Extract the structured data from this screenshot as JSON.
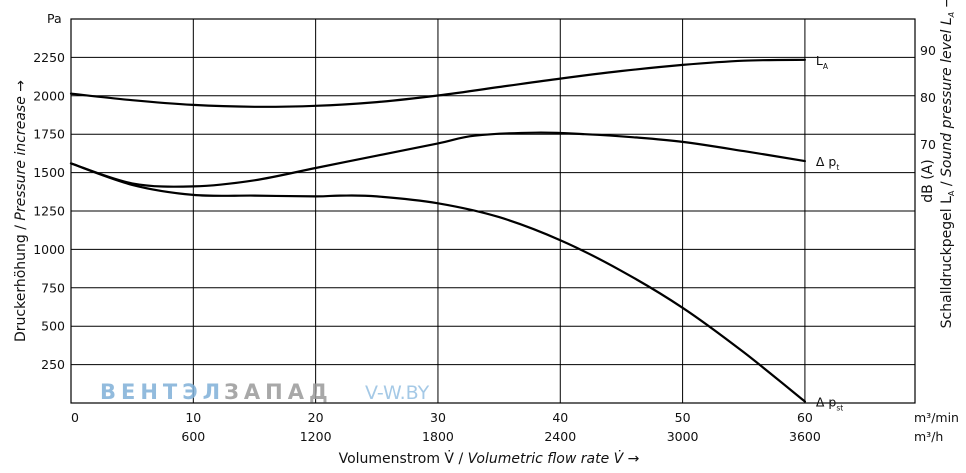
{
  "chart_data": {
    "type": "line",
    "title": "",
    "x": {
      "unit_primary": "m³/min",
      "unit_secondary": "m³/h",
      "label_de": "Volumenstrom V̇ / ",
      "label_en": "Volumetric flow rate V̇ →",
      "range": [
        0,
        69
      ],
      "ticks": [
        0,
        10,
        20,
        30,
        40,
        50,
        60
      ],
      "ticks_secondary": [
        {
          "at": 10,
          "label": "600"
        },
        {
          "at": 20,
          "label": "1200"
        },
        {
          "at": 30,
          "label": "1800"
        },
        {
          "at": 40,
          "label": "2400"
        },
        {
          "at": 50,
          "label": "3000"
        },
        {
          "at": 60,
          "label": "3600"
        }
      ]
    },
    "y_left": {
      "unit": "Pa",
      "label_de": "Druckerhöhung / ",
      "label_en": "Pressure increase →",
      "range": [
        0,
        2500
      ],
      "ticks": [
        250,
        500,
        750,
        1000,
        1250,
        1500,
        1750,
        2000,
        2250
      ]
    },
    "y_right": {
      "unit": "dB (A)",
      "label": "Schalldruckpegel L_A / Sound pressure level L_A →",
      "label_de": "Schalldruckpegel L",
      "label_sub": "A",
      "label_sep": " / ",
      "label_en": "Sound pressure level L",
      "label_en_sub": "A",
      "label_arrow": " →",
      "range": [
        15,
        96.67
      ],
      "ticks": [
        70,
        80,
        90
      ]
    },
    "grid": true,
    "series": [
      {
        "name": "L_A",
        "label_main": "L",
        "label_sub": "A",
        "axis": "right",
        "points": [
          [
            0,
            80.8
          ],
          [
            5,
            79.4
          ],
          [
            10,
            78.4
          ],
          [
            15,
            78.0
          ],
          [
            20,
            78.2
          ],
          [
            25,
            79.0
          ],
          [
            30,
            80.4
          ],
          [
            35,
            82.2
          ],
          [
            40,
            84.0
          ],
          [
            45,
            85.6
          ],
          [
            50,
            86.9
          ],
          [
            55,
            87.8
          ],
          [
            60,
            88.0
          ]
        ]
      },
      {
        "name": "Δ p_t",
        "label_main": "Δ p",
        "label_sub": "t",
        "axis": "left",
        "points": [
          [
            0,
            1560
          ],
          [
            5,
            1430
          ],
          [
            10,
            1410
          ],
          [
            15,
            1450
          ],
          [
            20,
            1530
          ],
          [
            25,
            1610
          ],
          [
            30,
            1690
          ],
          [
            33,
            1740
          ],
          [
            38,
            1760
          ],
          [
            42,
            1750
          ],
          [
            46,
            1730
          ],
          [
            50,
            1700
          ],
          [
            55,
            1640
          ],
          [
            60,
            1575
          ]
        ]
      },
      {
        "name": "Δ p_st",
        "label_main": "Δ p",
        "label_sub": "st",
        "axis": "left",
        "points": [
          [
            0,
            1560
          ],
          [
            5,
            1420
          ],
          [
            10,
            1355
          ],
          [
            15,
            1350
          ],
          [
            20,
            1345
          ],
          [
            22,
            1350
          ],
          [
            25,
            1345
          ],
          [
            30,
            1300
          ],
          [
            35,
            1210
          ],
          [
            40,
            1060
          ],
          [
            45,
            860
          ],
          [
            50,
            620
          ],
          [
            55,
            330
          ],
          [
            60,
            10
          ]
        ]
      }
    ]
  },
  "watermark": {
    "part1": "ВЕНТЭЛ",
    "part2": "ЗАПАД",
    "part3": "V-W.BY",
    "color1": "#7fb0d8",
    "color2": "#9a9a9a",
    "color3": "#9cc4e4"
  }
}
